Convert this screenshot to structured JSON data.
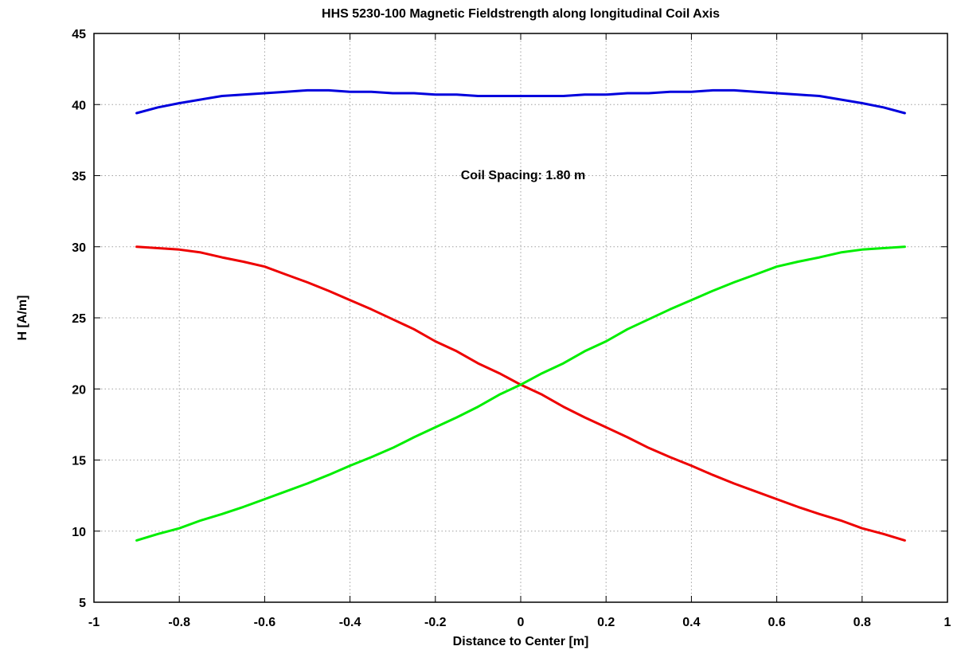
{
  "chart_data": {
    "type": "line",
    "title": "HHS 5230-100 Magnetic Fieldstrength along longitudinal Coil Axis",
    "xlabel": "Distance to Center [m]",
    "ylabel": "H [A/m]",
    "xlim": [
      -1,
      1
    ],
    "ylim": [
      5,
      45
    ],
    "xticks": [
      -1,
      -0.8,
      -0.6,
      -0.4,
      -0.2,
      0,
      0.2,
      0.4,
      0.6,
      0.8,
      1
    ],
    "xtick_labels": [
      "-1",
      "-0.8",
      "-0.6",
      "-0.4",
      "-0.2",
      "0",
      "0.2",
      "0.4",
      "0.6",
      "0.8",
      "1"
    ],
    "yticks": [
      5,
      10,
      15,
      20,
      25,
      30,
      35,
      40,
      45
    ],
    "ytick_labels": [
      "5",
      "10",
      "15",
      "20",
      "25",
      "30",
      "35",
      "40",
      "45"
    ],
    "grid": true,
    "annotation": "Coil Spacing: 1.80 m",
    "x": [
      -0.9,
      -0.85,
      -0.8,
      -0.75,
      -0.7,
      -0.65,
      -0.6,
      -0.55,
      -0.5,
      -0.45,
      -0.4,
      -0.35,
      -0.3,
      -0.25,
      -0.2,
      -0.15,
      -0.1,
      -0.05,
      0,
      0.05,
      0.1,
      0.15,
      0.2,
      0.25,
      0.3,
      0.35,
      0.4,
      0.45,
      0.5,
      0.55,
      0.6,
      0.65,
      0.7,
      0.75,
      0.8,
      0.85,
      0.9
    ],
    "series": [
      {
        "color": "#0000dd",
        "values": [
          39.4,
          39.8,
          40.1,
          40.35,
          40.6,
          40.7,
          40.8,
          40.9,
          41.0,
          41.0,
          40.9,
          40.9,
          40.8,
          40.8,
          40.7,
          40.7,
          40.6,
          40.6,
          40.6,
          40.6,
          40.6,
          40.7,
          40.7,
          40.8,
          40.8,
          40.9,
          40.9,
          41.0,
          41.0,
          40.9,
          40.8,
          40.7,
          40.6,
          40.35,
          40.1,
          39.8,
          39.4
        ]
      },
      {
        "color": "#ee0000",
        "values": [
          30.0,
          29.9,
          29.8,
          29.6,
          29.25,
          28.95,
          28.6,
          28.05,
          27.5,
          26.9,
          26.25,
          25.6,
          24.9,
          24.2,
          23.35,
          22.65,
          21.8,
          21.1,
          20.3,
          19.6,
          18.75,
          18.0,
          17.3,
          16.6,
          15.85,
          15.2,
          14.6,
          13.95,
          13.35,
          12.8,
          12.25,
          11.7,
          11.2,
          10.75,
          10.2,
          9.8,
          9.35
        ]
      },
      {
        "color": "#00ee00",
        "values": [
          9.35,
          9.8,
          10.2,
          10.75,
          11.2,
          11.7,
          12.25,
          12.8,
          13.35,
          13.95,
          14.6,
          15.2,
          15.85,
          16.6,
          17.3,
          18.0,
          18.75,
          19.6,
          20.3,
          21.1,
          21.8,
          22.65,
          23.35,
          24.2,
          24.9,
          25.6,
          26.25,
          26.9,
          27.5,
          28.05,
          28.6,
          28.95,
          29.25,
          29.6,
          29.8,
          29.9,
          30.0
        ]
      }
    ]
  }
}
